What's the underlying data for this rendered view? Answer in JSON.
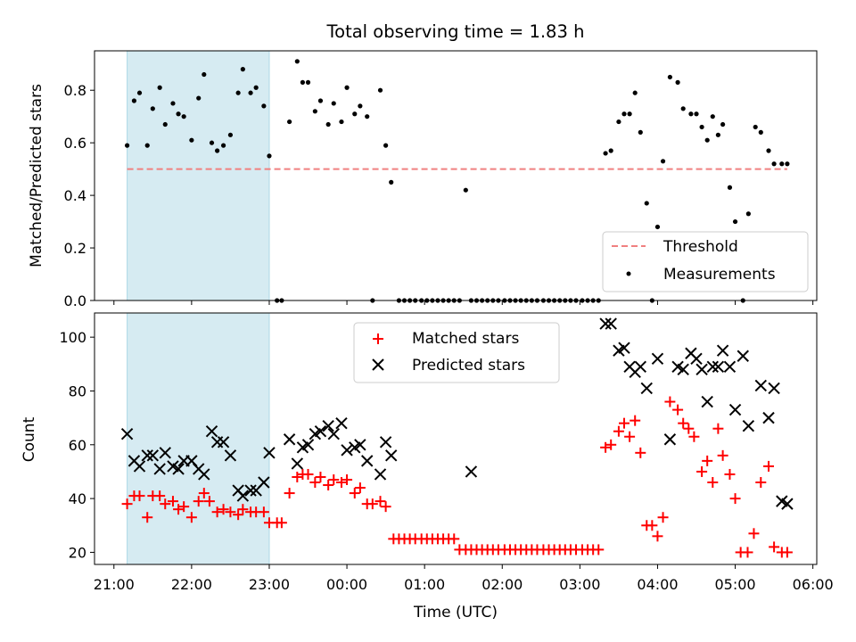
{
  "chart_data": [
    {
      "type": "scatter",
      "title": "Total observing time = 1.83 h",
      "xlabel": "",
      "ylabel": "Matched/Predicted stars",
      "x_unit": "hours relative to 00:00 UTC",
      "xlim": [
        -3.25,
        6.05
      ],
      "ylim": [
        0,
        0.95
      ],
      "yticks": [
        0.0,
        0.2,
        0.4,
        0.6,
        0.8
      ],
      "ytick_labels": [
        "0.0",
        "0.2",
        "0.4",
        "0.6",
        "0.8"
      ],
      "grid": false,
      "shaded_span": {
        "x0": -2.83,
        "x1": -1.0,
        "color": "#add8e6"
      },
      "threshold": {
        "name": "Threshold",
        "y": 0.5,
        "x0": -2.83,
        "x1": 5.67,
        "color": "#f08080"
      },
      "legend": {
        "placement": "lower-right",
        "entries": [
          "Threshold",
          "Measurements"
        ]
      },
      "series": [
        {
          "name": "Measurements",
          "marker": "dot",
          "color": "#000000",
          "x": [
            -2.83,
            -2.74,
            -2.67,
            -2.57,
            -2.5,
            -2.41,
            -2.34,
            -2.24,
            -2.17,
            -2.1,
            -2.0,
            -1.91,
            -1.84,
            -1.74,
            -1.67,
            -1.59,
            -1.5,
            -1.4,
            -1.34,
            -1.24,
            -1.17,
            -1.07,
            -1.0,
            -0.9,
            -0.84,
            -0.74,
            -0.64,
            -0.57,
            -0.5,
            -0.41,
            -0.34,
            -0.24,
            -0.17,
            -0.07,
            0.0,
            0.1,
            0.17,
            0.26,
            0.33,
            0.43,
            0.5,
            0.57,
            0.67,
            0.74,
            0.81,
            0.88,
            0.96,
            1.03,
            1.1,
            1.17,
            1.24,
            1.31,
            1.38,
            1.45,
            1.53,
            1.6,
            1.67,
            1.74,
            1.81,
            1.88,
            1.95,
            2.03,
            2.1,
            2.17,
            2.24,
            2.31,
            2.38,
            2.45,
            2.53,
            2.6,
            2.67,
            2.74,
            2.81,
            2.88,
            2.95,
            3.03,
            3.1,
            3.17,
            3.24,
            3.33,
            3.4,
            3.5,
            3.57,
            3.64,
            3.71,
            3.78,
            3.86,
            3.93,
            4.0,
            4.07,
            4.16,
            4.26,
            4.33,
            4.43,
            4.5,
            4.57,
            4.64,
            4.71,
            4.78,
            4.84,
            4.93,
            5.0,
            5.1,
            5.17,
            5.26,
            5.33,
            5.43,
            5.5,
            5.6,
            5.67
          ],
          "y": [
            0.59,
            0.76,
            0.79,
            0.59,
            0.73,
            0.81,
            0.67,
            0.75,
            0.71,
            0.7,
            0.61,
            0.77,
            0.86,
            0.6,
            0.57,
            0.59,
            0.63,
            0.79,
            0.88,
            0.79,
            0.81,
            0.74,
            0.55,
            0.0,
            0.0,
            0.68,
            0.91,
            0.83,
            0.83,
            0.72,
            0.76,
            0.67,
            0.75,
            0.68,
            0.81,
            0.71,
            0.74,
            0.7,
            0.0,
            0.8,
            0.59,
            0.45,
            0.0,
            0.0,
            0.0,
            0.0,
            0.0,
            0.0,
            0.0,
            0.0,
            0.0,
            0.0,
            0.0,
            0.0,
            0.42,
            0.0,
            0.0,
            0.0,
            0.0,
            0.0,
            0.0,
            0.0,
            0.0,
            0.0,
            0.0,
            0.0,
            0.0,
            0.0,
            0.0,
            0.0,
            0.0,
            0.0,
            0.0,
            0.0,
            0.0,
            0.0,
            0.0,
            0.0,
            0.0,
            0.56,
            0.57,
            0.68,
            0.71,
            0.71,
            0.79,
            0.64,
            0.37,
            0.0,
            0.28,
            0.53,
            0.85,
            0.83,
            0.73,
            0.71,
            0.71,
            0.66,
            0.61,
            0.7,
            0.63,
            0.67,
            0.43,
            0.3,
            0.0,
            0.33,
            0.66,
            0.64,
            0.57,
            0.52,
            0.52,
            0.52
          ]
        }
      ]
    },
    {
      "type": "scatter",
      "title": "",
      "xlabel": "Time (UTC)",
      "ylabel": "Count",
      "x_unit": "hours relative to 00:00 UTC",
      "xlim": [
        -3.25,
        6.05
      ],
      "ylim": [
        15.5,
        109
      ],
      "xticks": [
        -3,
        -2,
        -1,
        0,
        1,
        2,
        3,
        4,
        5,
        6
      ],
      "xtick_labels": [
        "21:00",
        "22:00",
        "23:00",
        "00:00",
        "01:00",
        "02:00",
        "03:00",
        "04:00",
        "05:00",
        "06:00"
      ],
      "yticks": [
        20,
        40,
        60,
        80,
        100
      ],
      "ytick_labels": [
        "20",
        "40",
        "60",
        "80",
        "100"
      ],
      "grid": false,
      "shaded_span": {
        "x0": -2.83,
        "x1": -1.0,
        "color": "#add8e6"
      },
      "legend": {
        "placement": "upper-center",
        "entries": [
          "Matched stars",
          "Predicted stars"
        ]
      },
      "series": [
        {
          "name": "Matched stars",
          "marker": "plus",
          "color": "#ff0000",
          "x": [
            -2.83,
            -2.74,
            -2.67,
            -2.57,
            -2.5,
            -2.41,
            -2.34,
            -2.24,
            -2.17,
            -2.1,
            -2.0,
            -1.91,
            -1.84,
            -1.77,
            -1.67,
            -1.59,
            -1.5,
            -1.4,
            -1.34,
            -1.24,
            -1.17,
            -1.07,
            -1.0,
            -0.9,
            -0.84,
            -0.74,
            -0.64,
            -0.57,
            -0.5,
            -0.41,
            -0.34,
            -0.24,
            -0.17,
            -0.07,
            0.0,
            0.1,
            0.17,
            0.26,
            0.33,
            0.43,
            0.5,
            0.6,
            0.67,
            0.74,
            0.81,
            0.88,
            0.96,
            1.03,
            1.1,
            1.17,
            1.24,
            1.31,
            1.38,
            1.45,
            1.53,
            1.6,
            1.67,
            1.74,
            1.81,
            1.88,
            1.95,
            2.03,
            2.1,
            2.17,
            2.24,
            2.31,
            2.38,
            2.45,
            2.53,
            2.6,
            2.67,
            2.74,
            2.81,
            2.88,
            2.95,
            3.03,
            3.1,
            3.17,
            3.24,
            3.33,
            3.4,
            3.5,
            3.57,
            3.64,
            3.71,
            3.78,
            3.86,
            3.93,
            4.0,
            4.07,
            4.16,
            4.26,
            4.33,
            4.4,
            4.47,
            4.57,
            4.64,
            4.71,
            4.78,
            4.84,
            4.93,
            5.0,
            5.07,
            5.16,
            5.24,
            5.33,
            5.43,
            5.5,
            5.6,
            5.67
          ],
          "y": [
            38,
            41,
            41,
            33,
            41,
            41,
            38,
            39,
            36,
            37,
            33,
            39,
            42,
            39,
            35,
            36,
            35,
            34,
            36,
            35,
            35,
            35,
            31,
            31,
            31,
            42,
            48,
            49,
            49,
            46,
            48,
            45,
            47,
            46,
            47,
            42,
            44,
            38,
            38,
            39,
            37,
            25,
            25,
            25,
            25,
            25,
            25,
            25,
            25,
            25,
            25,
            25,
            25,
            21,
            21,
            21,
            21,
            21,
            21,
            21,
            21,
            21,
            21,
            21,
            21,
            21,
            21,
            21,
            21,
            21,
            21,
            21,
            21,
            21,
            21,
            21,
            21,
            21,
            21,
            59,
            60,
            65,
            68,
            63,
            69,
            57,
            30,
            30,
            26,
            33,
            76,
            73,
            68,
            66,
            63,
            50,
            54,
            46,
            66,
            56,
            49,
            40,
            20,
            20,
            27,
            46,
            52,
            22,
            20,
            20
          ]
        },
        {
          "name": "Predicted stars",
          "marker": "x",
          "color": "#000000",
          "x": [
            -2.83,
            -2.74,
            -2.67,
            -2.57,
            -2.5,
            -2.41,
            -2.34,
            -2.24,
            -2.17,
            -2.1,
            -2.0,
            -1.91,
            -1.84,
            -1.74,
            -1.67,
            -1.59,
            -1.5,
            -1.4,
            -1.34,
            -1.24,
            -1.17,
            -1.07,
            -1.0,
            -0.74,
            -0.64,
            -0.57,
            -0.5,
            -0.41,
            -0.34,
            -0.24,
            -0.17,
            -0.07,
            0.0,
            0.1,
            0.17,
            0.26,
            0.43,
            0.5,
            0.57,
            1.6,
            3.33,
            3.4,
            3.5,
            3.57,
            3.64,
            3.71,
            3.78,
            3.86,
            4.0,
            4.16,
            4.26,
            4.33,
            4.43,
            4.5,
            4.57,
            4.64,
            4.71,
            4.78,
            4.84,
            4.93,
            5.0,
            5.1,
            5.17,
            5.33,
            5.43,
            5.5,
            5.6,
            5.67
          ],
          "y": [
            64,
            54,
            52,
            56,
            56,
            51,
            57,
            52,
            51,
            54,
            54,
            51,
            49,
            65,
            61,
            61,
            56,
            43,
            41,
            43,
            43,
            46,
            57,
            62,
            53,
            59,
            60,
            64,
            65,
            67,
            64,
            68,
            58,
            59,
            60,
            54,
            49,
            61,
            56,
            50,
            105,
            105,
            95,
            96,
            89,
            87,
            89,
            81,
            92,
            62,
            89,
            88,
            94,
            92,
            88,
            76,
            89,
            89,
            95,
            89,
            73,
            93,
            67,
            82,
            70,
            81,
            39,
            38
          ]
        }
      ]
    }
  ]
}
